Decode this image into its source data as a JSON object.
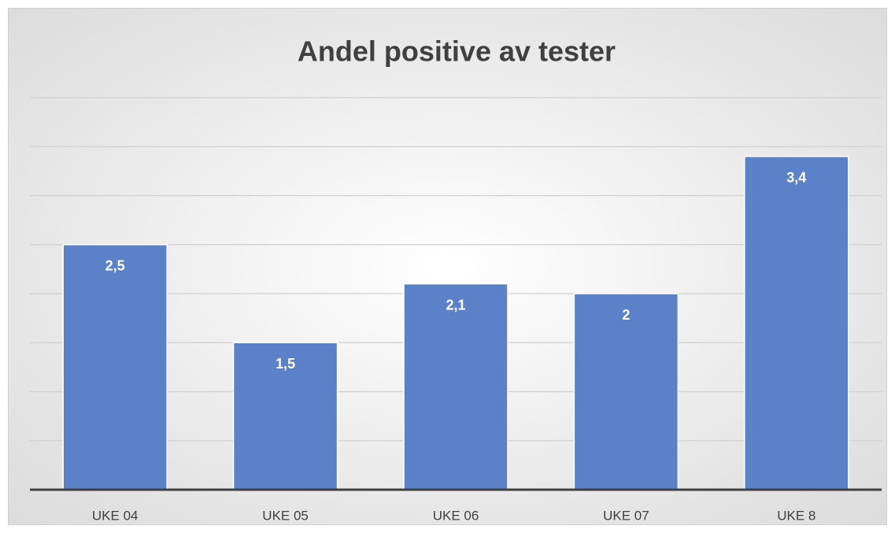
{
  "chart_data": {
    "type": "bar",
    "title": "Andel positive av tester",
    "categories": [
      "UKE 04",
      "UKE 05",
      "UKE 06",
      "UKE 07",
      "UKE 8"
    ],
    "values": [
      2.5,
      1.5,
      2.1,
      2,
      3.4
    ],
    "value_labels": [
      "2,5",
      "1,5",
      "2,1",
      "2",
      "3,4"
    ],
    "color": "#5b82c9",
    "ylim": [
      0,
      4
    ],
    "yticks": [
      0,
      0.5,
      1,
      1.5,
      2,
      2.5,
      3,
      3.5,
      4
    ],
    "grid": true
  }
}
